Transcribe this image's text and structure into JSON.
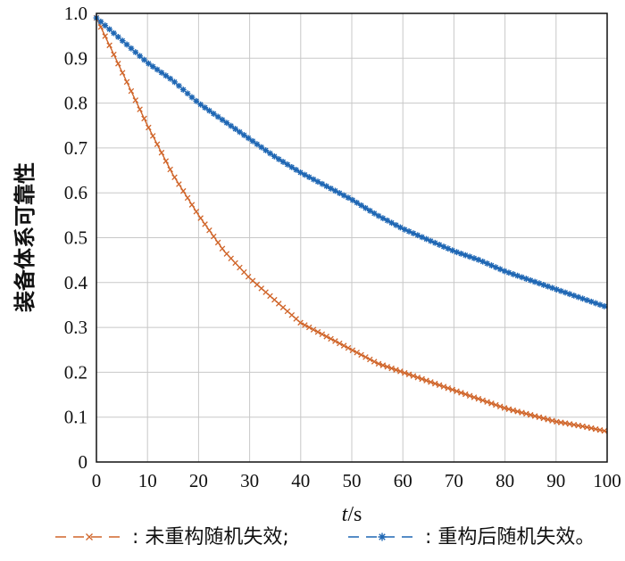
{
  "chart_data": {
    "type": "line",
    "title": "",
    "xlabel_italic": "t",
    "xlabel_unit": "/s",
    "ylabel": "装备体系可靠性",
    "xlim": [
      0,
      100
    ],
    "ylim": [
      0,
      1.0
    ],
    "x_ticks": [
      "0",
      "10",
      "20",
      "30",
      "40",
      "50",
      "60",
      "70",
      "80",
      "90",
      "100"
    ],
    "y_ticks": [
      "0",
      "0.1",
      "0.2",
      "0.3",
      "0.4",
      "0.5",
      "0.6",
      "0.7",
      "0.8",
      "0.9",
      "1.0"
    ],
    "grid": true,
    "legend_position": "bottom",
    "series": [
      {
        "name": "未重构随机失效;",
        "legend_prefix": ":",
        "color": "#d0652a",
        "marker": "x",
        "x": [
          0,
          5,
          10,
          15,
          20,
          25,
          30,
          35,
          40,
          45,
          50,
          55,
          60,
          65,
          70,
          75,
          80,
          85,
          90,
          95,
          100
        ],
        "values": [
          0.99,
          0.87,
          0.75,
          0.64,
          0.55,
          0.47,
          0.41,
          0.36,
          0.31,
          0.28,
          0.25,
          0.22,
          0.2,
          0.18,
          0.16,
          0.14,
          0.12,
          0.105,
          0.09,
          0.08,
          0.068
        ]
      },
      {
        "name": "重构后随机失效。",
        "legend_prefix": ":",
        "color": "#1f67b4",
        "marker": "*",
        "x": [
          0,
          5,
          10,
          15,
          20,
          25,
          30,
          35,
          40,
          45,
          50,
          55,
          60,
          65,
          70,
          75,
          80,
          85,
          90,
          95,
          100
        ],
        "values": [
          0.99,
          0.94,
          0.89,
          0.85,
          0.8,
          0.76,
          0.72,
          0.68,
          0.645,
          0.615,
          0.585,
          0.55,
          0.52,
          0.495,
          0.47,
          0.45,
          0.425,
          0.405,
          0.385,
          0.365,
          0.345
        ]
      }
    ]
  }
}
